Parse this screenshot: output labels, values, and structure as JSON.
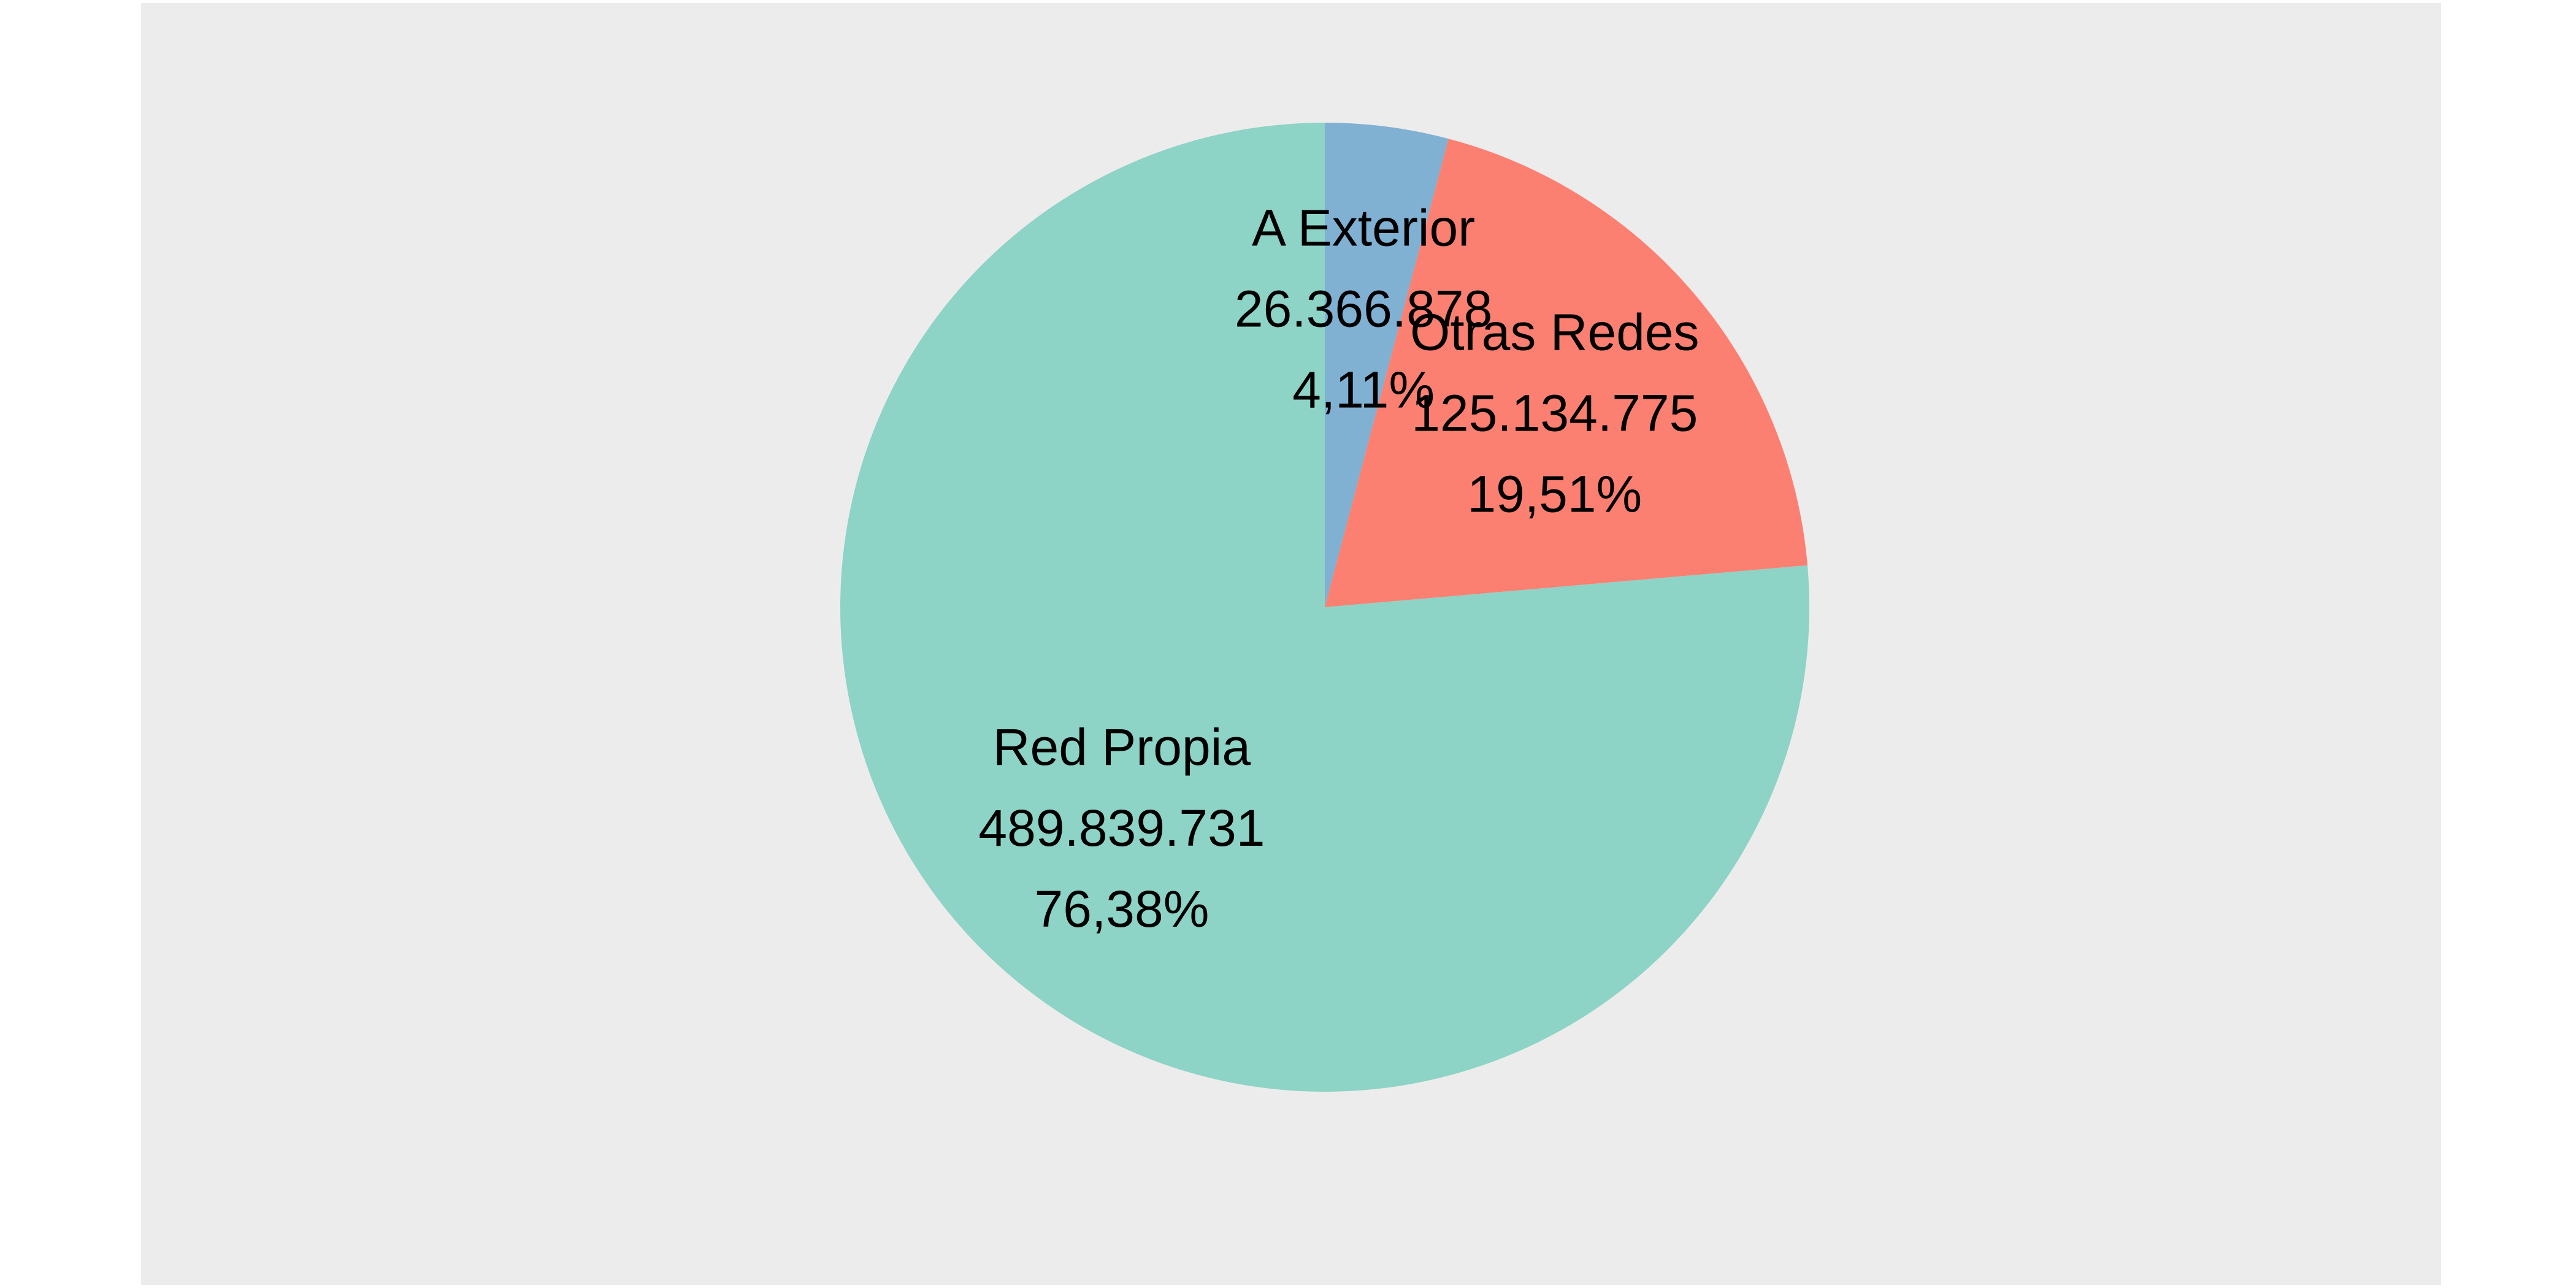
{
  "chart_data": {
    "type": "pie",
    "title": "",
    "start_angle_deg": 0,
    "direction": "clockwise",
    "legend": "none",
    "panel_background": "#EDECEC",
    "slices": [
      {
        "label": "A Exterior",
        "value": 26366878,
        "value_text": "26.366.878",
        "percent": 4.11,
        "percent_text": "4,11%",
        "color": "#80B0D2"
      },
      {
        "label": "Otras Redes",
        "value": 125134775,
        "value_text": "125.134.775",
        "percent": 19.51,
        "percent_text": "19,51%",
        "color": "#FC8072"
      },
      {
        "label": "Red Propia",
        "value": 489839731,
        "value_text": "489.839.731",
        "percent": 76.38,
        "percent_text": "76,38%",
        "color": "#8DD3C6"
      }
    ]
  }
}
